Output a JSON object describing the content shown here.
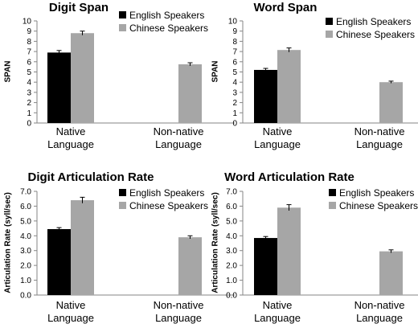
{
  "chart_data": [
    {
      "type": "bar",
      "title": "Digit Span",
      "ylabel": "SPAN",
      "xlabel": "",
      "categories": [
        [
          "Native",
          "Language"
        ],
        [
          "Non-native",
          "Language"
        ]
      ],
      "series": [
        {
          "name": "English Speakers",
          "color": "#000000",
          "values": [
            6.9,
            null
          ],
          "errors": [
            0.2,
            null
          ]
        },
        {
          "name": "Chinese Speakers",
          "color": "#a6a6a6",
          "values": [
            8.8,
            5.75
          ],
          "errors": [
            0.2,
            0.15
          ]
        }
      ],
      "ylim": [
        0,
        10
      ],
      "yticks": [
        "0",
        "1",
        "2",
        "3",
        "4",
        "5",
        "6",
        "7",
        "8",
        "9",
        "10"
      ],
      "grid": false,
      "legend_position": "top-right"
    },
    {
      "type": "bar",
      "title": "Word Span",
      "ylabel": "SPAN",
      "xlabel": "",
      "categories": [
        [
          "Native",
          "Language"
        ],
        [
          "Non-native",
          "Language"
        ]
      ],
      "series": [
        {
          "name": "English Speakers",
          "color": "#000000",
          "values": [
            5.2,
            null
          ],
          "errors": [
            0.15,
            null
          ]
        },
        {
          "name": "Chinese Speakers",
          "color": "#a6a6a6",
          "values": [
            7.15,
            4.0
          ],
          "errors": [
            0.2,
            0.1
          ]
        }
      ],
      "ylim": [
        0,
        10
      ],
      "yticks": [
        "0",
        "1",
        "2",
        "3",
        "4",
        "5",
        "6",
        "7",
        "8",
        "9",
        "10"
      ],
      "grid": false,
      "legend_position": "top-right"
    },
    {
      "type": "bar",
      "title": "Digit  Articulation Rate",
      "ylabel": "Articulation Rate (syll/sec)",
      "xlabel": "",
      "categories": [
        [
          "Native",
          "Language"
        ],
        [
          "Non-native",
          "Language"
        ]
      ],
      "series": [
        {
          "name": "English Speakers",
          "color": "#000000",
          "values": [
            4.45,
            null
          ],
          "errors": [
            0.1,
            null
          ]
        },
        {
          "name": "Chinese Speakers",
          "color": "#a6a6a6",
          "values": [
            6.4,
            3.9
          ],
          "errors": [
            0.2,
            0.1
          ]
        }
      ],
      "ylim": [
        0,
        7
      ],
      "yticks": [
        "0.0",
        "1.0",
        "2.0",
        "3.0",
        "4.0",
        "5.0",
        "6.0",
        "7.0"
      ],
      "grid": false,
      "legend_position": "top-right"
    },
    {
      "type": "bar",
      "title": "Word Articulation Rate",
      "ylabel": "Articulation Rate (syll/sec)",
      "xlabel": "",
      "categories": [
        [
          "Native",
          "Language"
        ],
        [
          "Non-native",
          "Language"
        ]
      ],
      "series": [
        {
          "name": "English Speakers",
          "color": "#000000",
          "values": [
            3.85,
            null
          ],
          "errors": [
            0.1,
            null
          ]
        },
        {
          "name": "Chinese Speakers",
          "color": "#a6a6a6",
          "values": [
            5.9,
            2.95
          ],
          "errors": [
            0.2,
            0.1
          ]
        }
      ],
      "ylim": [
        0,
        7
      ],
      "yticks": [
        "0.0",
        "1.0",
        "2.0",
        "3.0",
        "4.0",
        "5.0",
        "6.0",
        "7.0"
      ],
      "grid": false,
      "legend_position": "top-right"
    }
  ]
}
